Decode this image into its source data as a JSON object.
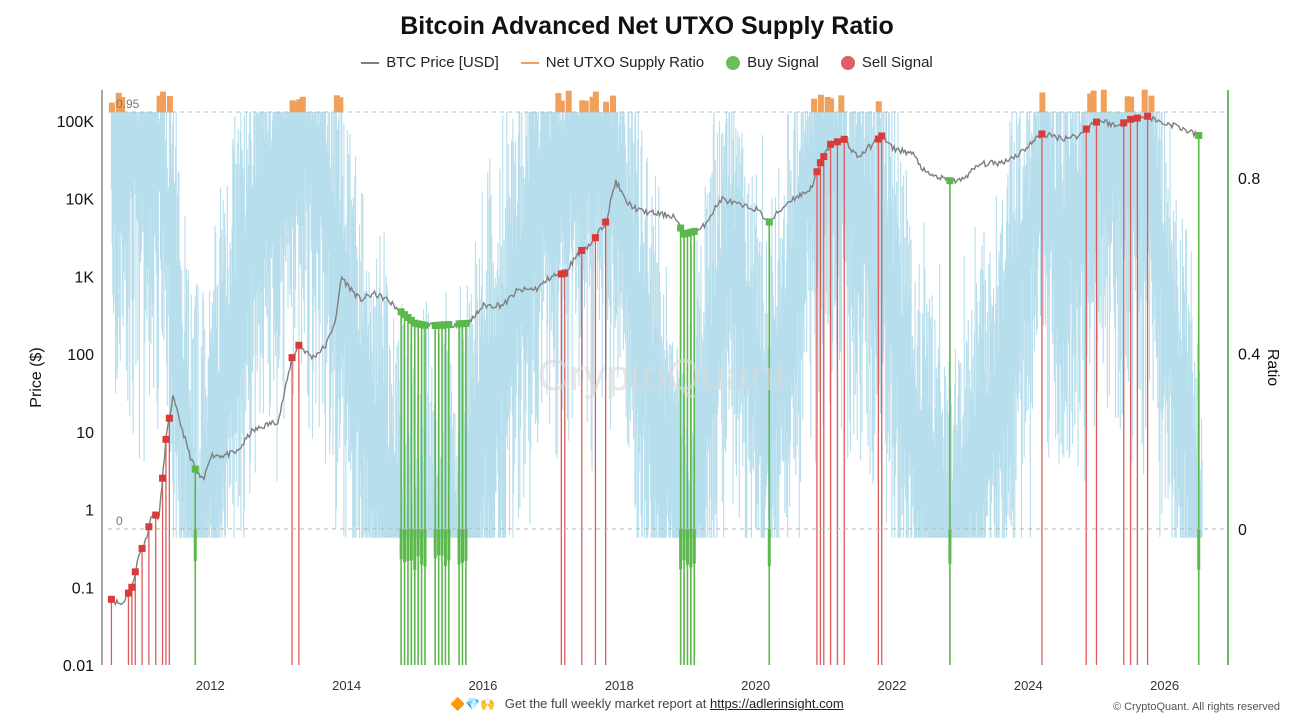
{
  "chart_data": {
    "type": "line",
    "title": "Bitcoin Advanced Net UTXO Supply Ratio",
    "watermark": "CryptoQuant",
    "legend": [
      {
        "label": "BTC Price [USD]",
        "kind": "line",
        "color": "#7f7f7f"
      },
      {
        "label": "Net UTXO Supply Ratio",
        "kind": "line",
        "color": "#f0a05a"
      },
      {
        "label": "Buy Signal",
        "kind": "dot",
        "color": "#6abf5a"
      },
      {
        "label": "Sell Signal",
        "kind": "dot",
        "color": "#e06060"
      }
    ],
    "legend_position": "top-center",
    "colors": {
      "price": "#7f7f7f",
      "ratio_low": "#a9d8ea",
      "ratio_high": "#f0a05a",
      "buy": "#5bb84a",
      "sell": "#e05a5a",
      "sell_marker": "#d93a3a",
      "threshold": "#b8b8b8"
    },
    "y_left": {
      "label": "Price ($)",
      "scale": "log",
      "range": [
        0.01,
        250000
      ],
      "ticks": [
        0.01,
        0.1,
        1,
        10,
        100,
        1000,
        10000,
        100000
      ],
      "tick_labels": [
        "0.01",
        "0.1",
        "1",
        "10",
        "100",
        "1K",
        "10K",
        "100K"
      ]
    },
    "y_right": {
      "label": "Ratio",
      "range": [
        -0.31,
        1.0
      ],
      "ticks": [
        0,
        0.4,
        0.8
      ],
      "tick_labels": [
        "0",
        "0.4",
        "0.8"
      ]
    },
    "thresholds": [
      {
        "value": 0.95,
        "label": "0.95"
      },
      {
        "value": 0,
        "label": "0"
      }
    ],
    "x_axis": {
      "range": [
        2010.5,
        2026.9
      ],
      "ticks": [
        2012,
        2014,
        2016,
        2018,
        2020,
        2022,
        2024,
        2026
      ],
      "tick_labels": [
        "2012",
        "2014",
        "2016",
        "2018",
        "2020",
        "2022",
        "2024",
        "2026"
      ]
    },
    "price_series": {
      "name": "BTC Price [USD]",
      "points": [
        [
          2010.55,
          0.07
        ],
        [
          2010.7,
          0.06
        ],
        [
          2010.85,
          0.1
        ],
        [
          2010.95,
          0.25
        ],
        [
          2011.05,
          0.4
        ],
        [
          2011.15,
          0.9
        ],
        [
          2011.25,
          0.8
        ],
        [
          2011.35,
          8
        ],
        [
          2011.45,
          28
        ],
        [
          2011.55,
          14
        ],
        [
          2011.7,
          5
        ],
        [
          2011.8,
          3
        ],
        [
          2011.9,
          2.3
        ],
        [
          2012.0,
          5
        ],
        [
          2012.2,
          5
        ],
        [
          2012.4,
          5.5
        ],
        [
          2012.6,
          10
        ],
        [
          2012.8,
          12
        ],
        [
          2013.0,
          14
        ],
        [
          2013.2,
          90
        ],
        [
          2013.3,
          130
        ],
        [
          2013.5,
          90
        ],
        [
          2013.7,
          130
        ],
        [
          2013.85,
          300
        ],
        [
          2013.92,
          1000
        ],
        [
          2014.0,
          800
        ],
        [
          2014.2,
          500
        ],
        [
          2014.4,
          600
        ],
        [
          2014.6,
          500
        ],
        [
          2014.8,
          350
        ],
        [
          2015.0,
          250
        ],
        [
          2015.2,
          230
        ],
        [
          2015.5,
          240
        ],
        [
          2015.8,
          250
        ],
        [
          2016.0,
          420
        ],
        [
          2016.3,
          430
        ],
        [
          2016.5,
          650
        ],
        [
          2016.8,
          700
        ],
        [
          2017.0,
          1000
        ],
        [
          2017.2,
          1100
        ],
        [
          2017.4,
          2000
        ],
        [
          2017.6,
          2700
        ],
        [
          2017.8,
          5000
        ],
        [
          2017.95,
          17000
        ],
        [
          2018.1,
          9000
        ],
        [
          2018.3,
          7000
        ],
        [
          2018.5,
          6500
        ],
        [
          2018.8,
          6000
        ],
        [
          2018.95,
          3500
        ],
        [
          2019.2,
          4000
        ],
        [
          2019.5,
          10000
        ],
        [
          2019.8,
          8000
        ],
        [
          2020.0,
          7500
        ],
        [
          2020.2,
          5000
        ],
        [
          2020.5,
          9500
        ],
        [
          2020.8,
          13000
        ],
        [
          2020.95,
          29000
        ],
        [
          2021.1,
          50000
        ],
        [
          2021.3,
          58000
        ],
        [
          2021.5,
          34000
        ],
        [
          2021.85,
          64000
        ],
        [
          2022.0,
          45000
        ],
        [
          2022.3,
          38000
        ],
        [
          2022.5,
          21000
        ],
        [
          2022.85,
          17000
        ],
        [
          2023.0,
          17000
        ],
        [
          2023.3,
          28000
        ],
        [
          2023.6,
          29000
        ],
        [
          2023.85,
          37000
        ],
        [
          2024.2,
          68000
        ],
        [
          2024.5,
          60000
        ],
        [
          2024.75,
          65000
        ],
        [
          2024.95,
          95000
        ],
        [
          2025.1,
          100000
        ],
        [
          2025.3,
          85000
        ],
        [
          2025.5,
          105000
        ],
        [
          2025.75,
          115000
        ],
        [
          2025.95,
          95000
        ],
        [
          2026.15,
          88000
        ],
        [
          2026.4,
          70000
        ],
        [
          2026.5,
          65000
        ]
      ]
    },
    "buy_signals": [
      2011.78,
      2014.8,
      2014.85,
      2014.9,
      2014.95,
      2015.0,
      2015.05,
      2015.1,
      2015.15,
      2015.3,
      2015.35,
      2015.4,
      2015.45,
      2015.5,
      2015.65,
      2015.7,
      2015.75,
      2018.9,
      2018.95,
      2019.0,
      2019.05,
      2019.1,
      2020.2,
      2022.85,
      2026.5
    ],
    "sell_signals": [
      2010.55,
      2010.8,
      2010.85,
      2010.9,
      2011.0,
      2011.1,
      2011.2,
      2011.3,
      2011.35,
      2011.4,
      2013.2,
      2013.3,
      2017.15,
      2017.2,
      2017.45,
      2017.65,
      2017.8,
      2020.9,
      2020.95,
      2021.0,
      2021.1,
      2021.2,
      2021.3,
      2021.8,
      2021.85,
      2024.2,
      2024.85,
      2025.0,
      2025.4,
      2025.5,
      2025.6,
      2025.75
    ]
  },
  "footer": {
    "emojis": "🔶💎🙌",
    "text": "Get the full weekly market report at",
    "link": "https://adlerinsight.com"
  },
  "copyright": "© CryptoQuant. All rights reserved"
}
